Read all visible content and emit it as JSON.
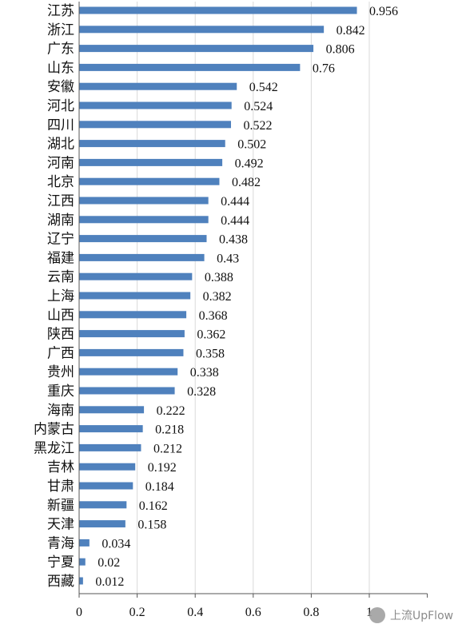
{
  "chart_data": {
    "type": "bar",
    "orientation": "horizontal",
    "categories": [
      "江苏",
      "浙江",
      "广东",
      "山东",
      "安徽",
      "河北",
      "四川",
      "湖北",
      "河南",
      "北京",
      "江西",
      "湖南",
      "辽宁",
      "福建",
      "云南",
      "上海",
      "山西",
      "陕西",
      "广西",
      "贵州",
      "重庆",
      "海南",
      "内蒙古",
      "黑龙江",
      "吉林",
      "甘肃",
      "新疆",
      "天津",
      "青海",
      "宁夏",
      "西藏"
    ],
    "values": [
      0.956,
      0.842,
      0.806,
      0.76,
      0.542,
      0.524,
      0.522,
      0.502,
      0.492,
      0.482,
      0.444,
      0.444,
      0.438,
      0.43,
      0.388,
      0.382,
      0.368,
      0.362,
      0.358,
      0.338,
      0.328,
      0.222,
      0.218,
      0.212,
      0.192,
      0.184,
      0.162,
      0.158,
      0.034,
      0.02,
      0.012
    ],
    "value_labels": [
      "0.956",
      "0.842",
      "0.806",
      "0.76",
      "0.542",
      "0.524",
      "0.522",
      "0.502",
      "0.492",
      "0.482",
      "0.444",
      "0.444",
      "0.438",
      "0.43",
      "0.388",
      "0.382",
      "0.368",
      "0.362",
      "0.358",
      "0.338",
      "0.328",
      "0.222",
      "0.218",
      "0.212",
      "0.192",
      "0.184",
      "0.162",
      "0.158",
      "0.034",
      "0.02",
      "0.012"
    ],
    "x_ticks": [
      "0",
      "0.2",
      "0.4",
      "0.6",
      "0.8",
      "1"
    ],
    "xlim": [
      0,
      1.2
    ],
    "grid": true,
    "bar_color": "#4f81bd",
    "title": "",
    "xlabel": "",
    "ylabel": ""
  },
  "watermark": {
    "text": "上流UpFlow"
  }
}
